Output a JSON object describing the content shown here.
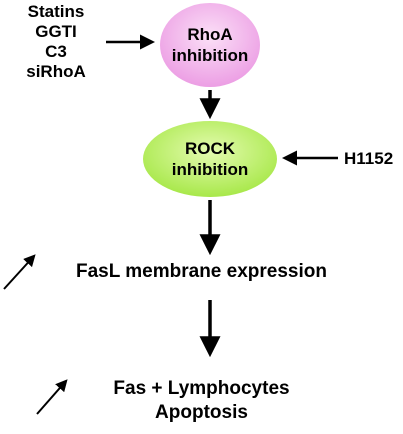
{
  "inhibitors": [
    "Statins",
    "GGTI",
    "C3",
    "siRhoA"
  ],
  "rhoa_node": {
    "line1": "RhoA",
    "line2": "inhibition",
    "color": "#f0a8e8"
  },
  "rock_node": {
    "line1": "ROCK",
    "line2": "inhibition",
    "color": "#b8ee60"
  },
  "rock_inhibitor": "H1152",
  "fasl_text": "FasL membrane expression",
  "apoptosis": {
    "line1": "Fas + Lymphocytes",
    "line2": "Apoptosis"
  }
}
